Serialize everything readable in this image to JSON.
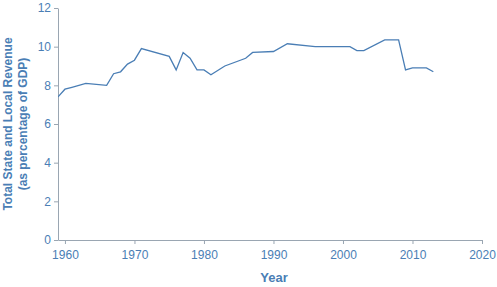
{
  "chart_data": {
    "type": "line",
    "x_label": "Year",
    "y_label": [
      "Total State and Local Revenue",
      "(as percentage of GDP)"
    ],
    "x": [
      1959,
      1960,
      1961,
      1963,
      1966,
      1967,
      1968,
      1969,
      1970,
      1971,
      1975,
      1976,
      1977,
      1978,
      1979,
      1980,
      1981,
      1983,
      1986,
      1987,
      1990,
      1992,
      1996,
      2001,
      2002,
      2003,
      2006,
      2008,
      2009,
      2010,
      2012,
      2013
    ],
    "series": [
      {
        "color": "#4a7eb5",
        "values": [
          7.4,
          7.8,
          7.9,
          8.1,
          8.0,
          8.6,
          8.7,
          9.1,
          9.3,
          9.9,
          9.5,
          8.8,
          9.7,
          9.4,
          8.8,
          8.8,
          8.55,
          9.0,
          9.4,
          9.7,
          9.75,
          10.15,
          10.0,
          10.0,
          9.8,
          9.8,
          10.35,
          10.35,
          8.8,
          8.9,
          8.9,
          8.7
        ]
      }
    ],
    "xlim": [
      1959,
      2020
    ],
    "xticks": [
      1960,
      1970,
      1980,
      1990,
      2000,
      2010,
      2020
    ],
    "ylim": [
      0,
      12
    ],
    "yticks": [
      0,
      2,
      4,
      6,
      8,
      10,
      12
    ],
    "grid": false
  }
}
